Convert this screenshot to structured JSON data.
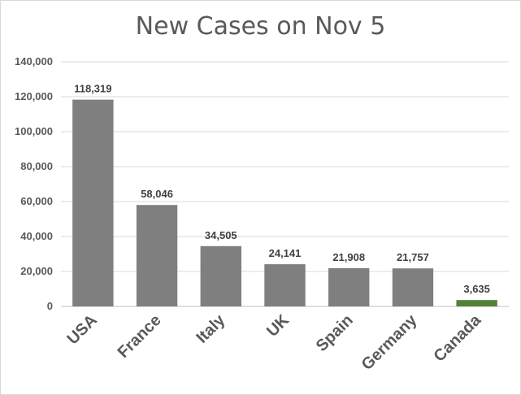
{
  "chart_data": {
    "type": "bar",
    "title": "New Cases on Nov 5",
    "categories": [
      "USA",
      "France",
      "Italy",
      "UK",
      "Spain",
      "Germany",
      "Canada"
    ],
    "values": [
      118319,
      58046,
      34505,
      24141,
      21908,
      21757,
      3635
    ],
    "data_labels": [
      "118,319",
      "58,046",
      "34,505",
      "24,141",
      "21,908",
      "21,757",
      "3,635"
    ],
    "bar_colors": [
      "#7f7f7f",
      "#7f7f7f",
      "#7f7f7f",
      "#7f7f7f",
      "#7f7f7f",
      "#7f7f7f",
      "#538135"
    ],
    "ylim": [
      0,
      140000
    ],
    "yticks": [
      0,
      20000,
      40000,
      60000,
      80000,
      100000,
      120000,
      140000
    ],
    "ytick_labels": [
      "0",
      "20,000",
      "40,000",
      "60,000",
      "80,000",
      "100,000",
      "120,000",
      "140,000"
    ],
    "grid": true,
    "legend": "none"
  }
}
